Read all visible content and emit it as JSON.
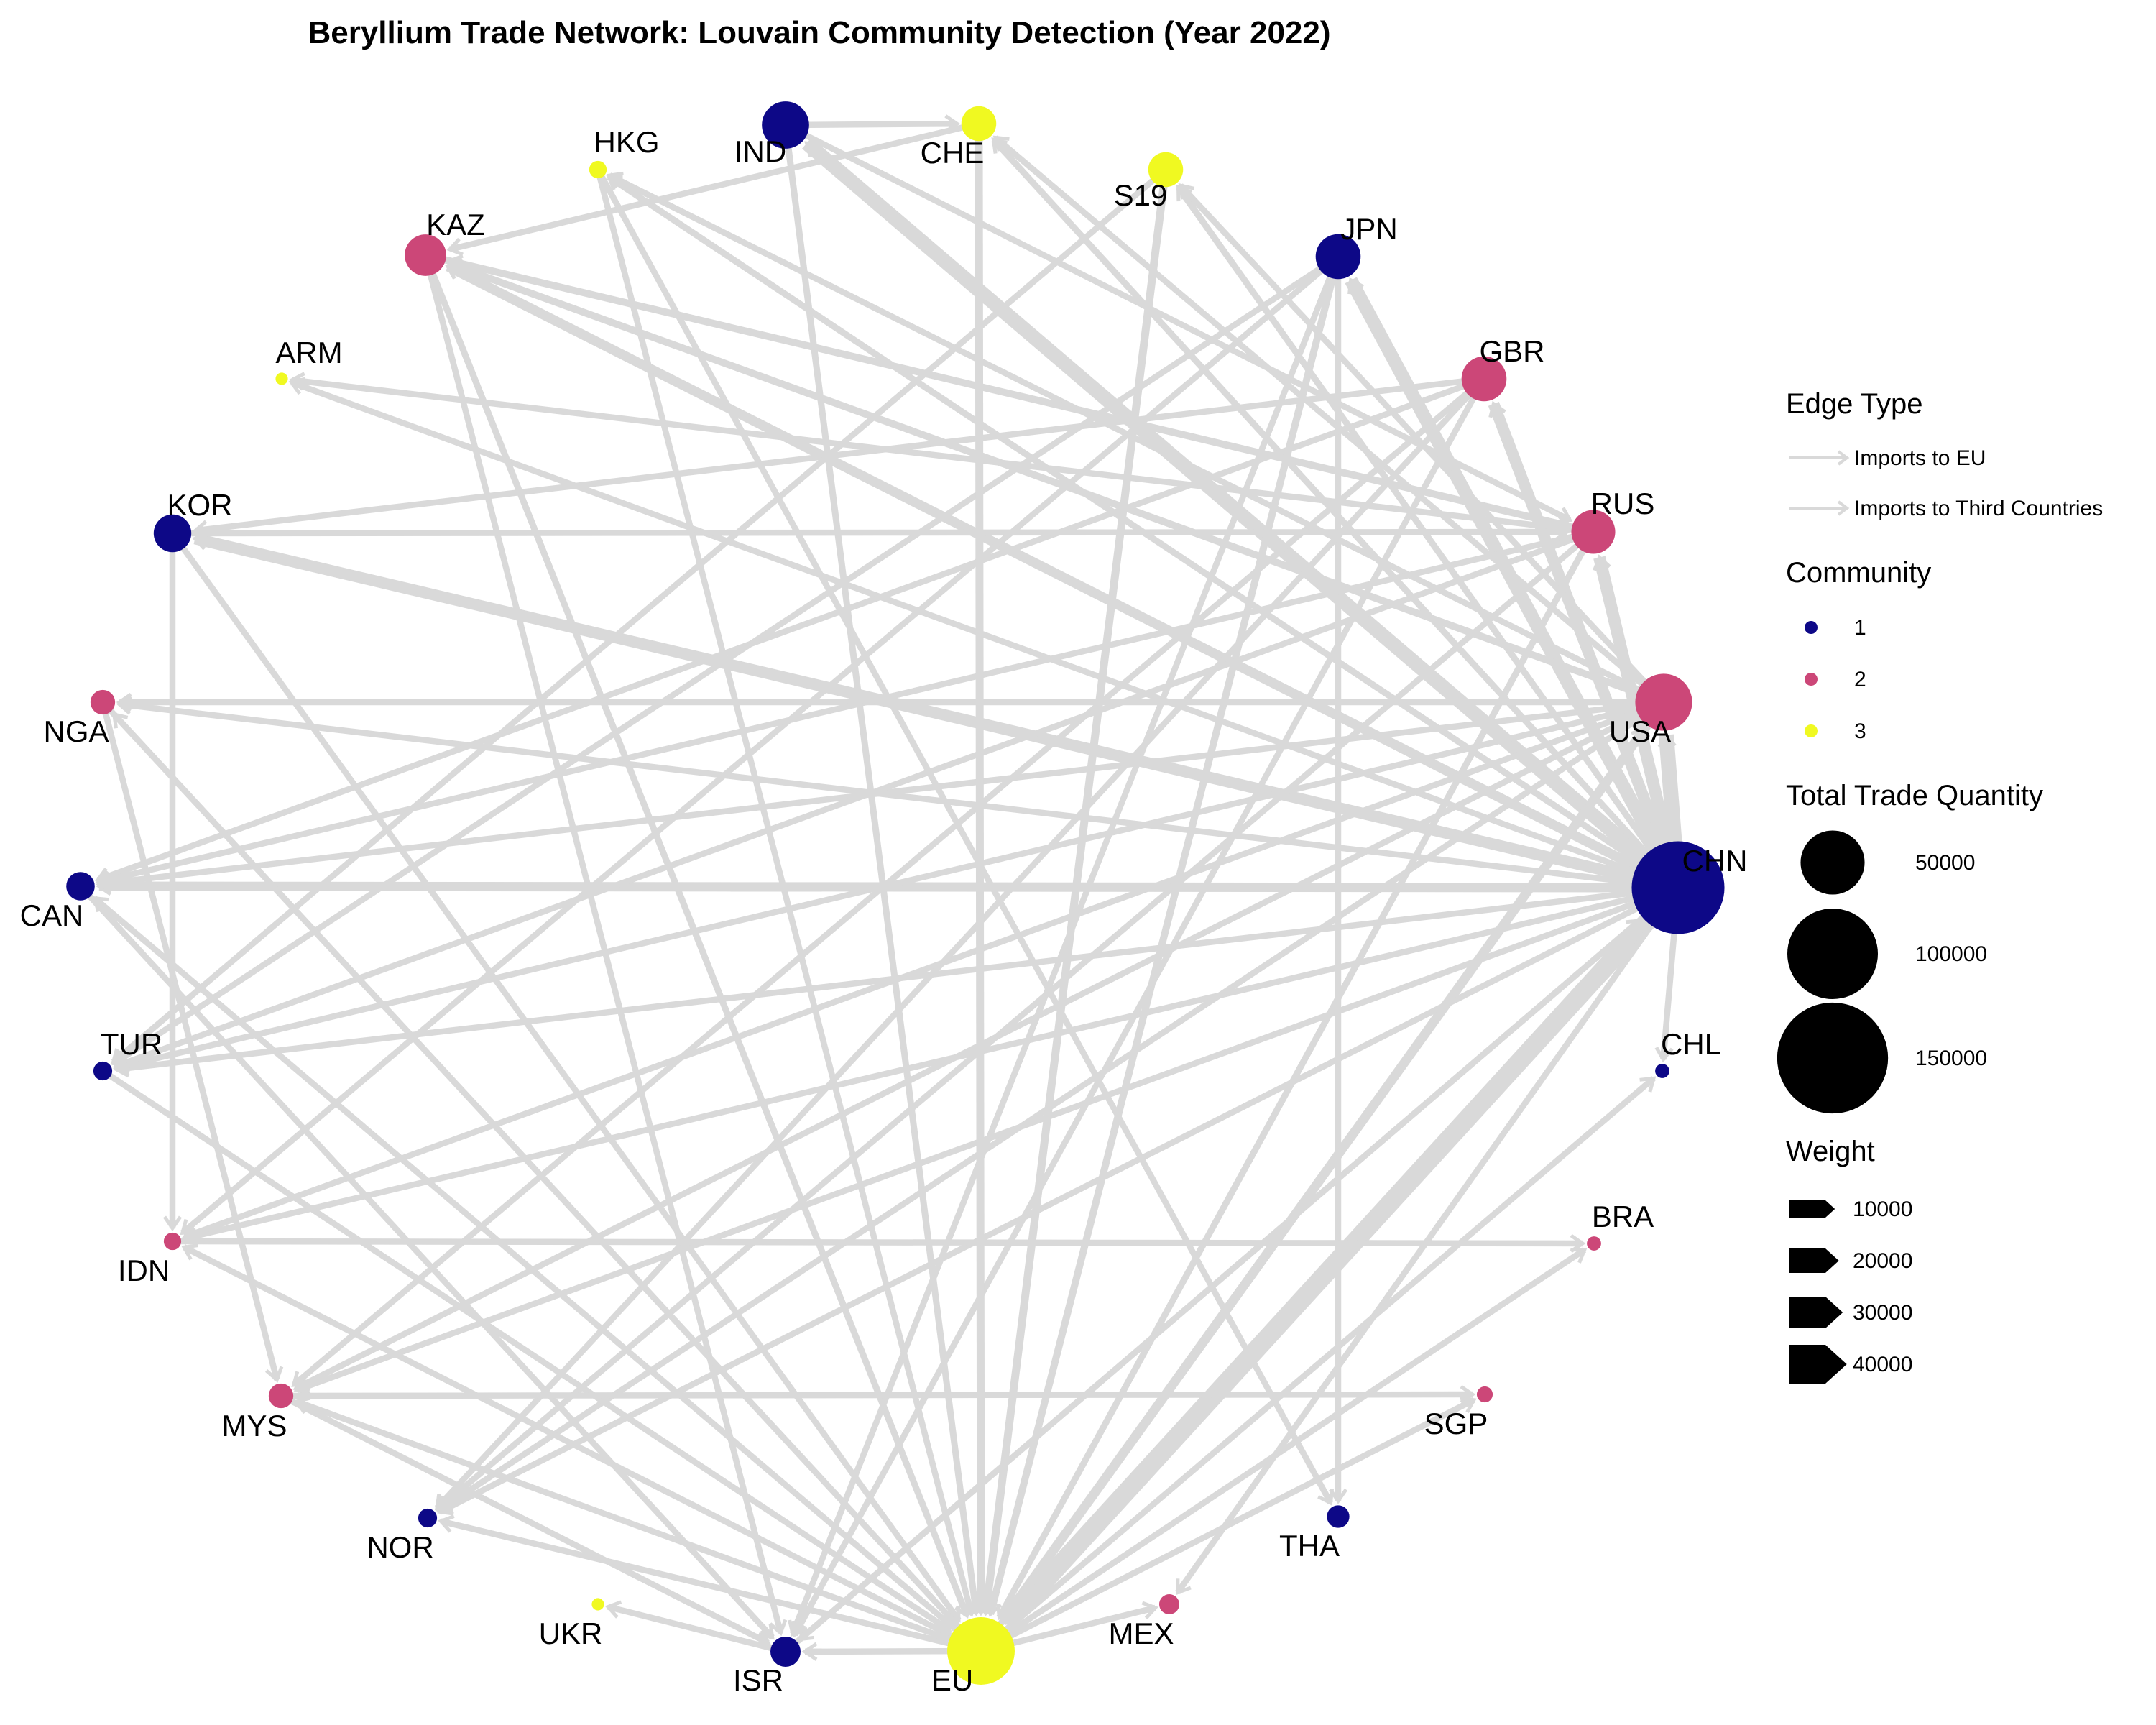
{
  "title": "Beryllium Trade Network: Louvain Community Detection (Year 2022)",
  "community_colors": {
    "1": "#0d0887",
    "2": "#cc4778",
    "3": "#f0f921"
  },
  "edge_color": "#d9d9d9",
  "nodes": [
    {
      "id": "IND",
      "community": "1",
      "size": 22000
    },
    {
      "id": "CHE",
      "community": "3",
      "size": 12000
    },
    {
      "id": "HKG",
      "community": "3",
      "size": 3000
    },
    {
      "id": "S19",
      "community": "3",
      "size": 12000
    },
    {
      "id": "KAZ",
      "community": "2",
      "size": 17000
    },
    {
      "id": "JPN",
      "community": "1",
      "size": 20000
    },
    {
      "id": "ARM",
      "community": "3",
      "size": 1500
    },
    {
      "id": "GBR",
      "community": "2",
      "size": 20000
    },
    {
      "id": "KOR",
      "community": "1",
      "size": 14000
    },
    {
      "id": "RUS",
      "community": "2",
      "size": 19000
    },
    {
      "id": "NGA",
      "community": "2",
      "size": 6000
    },
    {
      "id": "USA",
      "community": "2",
      "size": 32000
    },
    {
      "id": "CAN",
      "community": "1",
      "size": 8000
    },
    {
      "id": "CHN",
      "community": "1",
      "size": 85000
    },
    {
      "id": "TUR",
      "community": "1",
      "size": 3500
    },
    {
      "id": "CHL",
      "community": "1",
      "size": 2000
    },
    {
      "id": "IDN",
      "community": "2",
      "size": 3000
    },
    {
      "id": "BRA",
      "community": "2",
      "size": 2000
    },
    {
      "id": "MYS",
      "community": "2",
      "size": 6000
    },
    {
      "id": "SGP",
      "community": "2",
      "size": 2500
    },
    {
      "id": "NOR",
      "community": "1",
      "size": 3500
    },
    {
      "id": "THA",
      "community": "1",
      "size": 5000
    },
    {
      "id": "UKR",
      "community": "3",
      "size": 1500
    },
    {
      "id": "MEX",
      "community": "2",
      "size": 4000
    },
    {
      "id": "ISR",
      "community": "1",
      "size": 9000
    },
    {
      "id": "EU",
      "community": "3",
      "size": 45000
    }
  ],
  "edges": [
    {
      "from": "CHN",
      "to": "USA",
      "weight": 30000,
      "type": "Imports to Third Countries"
    },
    {
      "from": "CHN",
      "to": "RUS",
      "weight": 22000,
      "type": "Imports to Third Countries"
    },
    {
      "from": "CHN",
      "to": "GBR",
      "weight": 20000,
      "type": "Imports to Third Countries"
    },
    {
      "from": "CHN",
      "to": "JPN",
      "weight": 25000,
      "type": "Imports to Third Countries"
    },
    {
      "from": "CHN",
      "to": "IND",
      "weight": 28000,
      "type": "Imports to Third Countries"
    },
    {
      "from": "CHN",
      "to": "KOR",
      "weight": 20000,
      "type": "Imports to Third Countries"
    },
    {
      "from": "CHN",
      "to": "CAN",
      "weight": 14000,
      "type": "Imports to Third Countries"
    },
    {
      "from": "CHN",
      "to": "KAZ",
      "weight": 15000,
      "type": "Imports to Third Countries"
    },
    {
      "from": "CHN",
      "to": "EU",
      "weight": 40000,
      "type": "Imports to EU"
    },
    {
      "from": "CHN",
      "to": "S19",
      "weight": 6000,
      "type": "Imports to Third Countries"
    },
    {
      "from": "CHN",
      "to": "CHE",
      "weight": 6000,
      "type": "Imports to Third Countries"
    },
    {
      "from": "CHN",
      "to": "HKG",
      "weight": 6000,
      "type": "Imports to Third Countries"
    },
    {
      "from": "CHN",
      "to": "ARM",
      "weight": 5000,
      "type": "Imports to Third Countries"
    },
    {
      "from": "CHN",
      "to": "NGA",
      "weight": 5000,
      "type": "Imports to Third Countries"
    },
    {
      "from": "CHN",
      "to": "TUR",
      "weight": 5000,
      "type": "Imports to Third Countries"
    },
    {
      "from": "CHN",
      "to": "IDN",
      "weight": 5000,
      "type": "Imports to Third Countries"
    },
    {
      "from": "CHN",
      "to": "MYS",
      "weight": 5000,
      "type": "Imports to Third Countries"
    },
    {
      "from": "CHN",
      "to": "NOR",
      "weight": 5000,
      "type": "Imports to Third Countries"
    },
    {
      "from": "CHN",
      "to": "ISR",
      "weight": 5000,
      "type": "Imports to Third Countries"
    },
    {
      "from": "CHN",
      "to": "MEX",
      "weight": 5000,
      "type": "Imports to Third Countries"
    },
    {
      "from": "CHN",
      "to": "CHL",
      "weight": 5000,
      "type": "Imports to Third Countries"
    },
    {
      "from": "USA",
      "to": "EU",
      "weight": 14000,
      "type": "Imports to EU"
    },
    {
      "from": "USA",
      "to": "KAZ",
      "weight": 8000,
      "type": "Imports to Third Countries"
    },
    {
      "from": "USA",
      "to": "CAN",
      "weight": 5000,
      "type": "Imports to Third Countries"
    },
    {
      "from": "USA",
      "to": "NGA",
      "weight": 5000,
      "type": "Imports to Third Countries"
    },
    {
      "from": "USA",
      "to": "TUR",
      "weight": 5000,
      "type": "Imports to Third Countries"
    },
    {
      "from": "USA",
      "to": "HKG",
      "weight": 5000,
      "type": "Imports to Third Countries"
    },
    {
      "from": "USA",
      "to": "NOR",
      "weight": 5000,
      "type": "Imports to Third Countries"
    },
    {
      "from": "USA",
      "to": "S19",
      "weight": 5000,
      "type": "Imports to Third Countries"
    },
    {
      "from": "USA",
      "to": "CHE",
      "weight": 5000,
      "type": "Imports to Third Countries"
    },
    {
      "from": "USA",
      "to": "IDN",
      "weight": 5000,
      "type": "Imports to Third Countries"
    },
    {
      "from": "USA",
      "to": "MYS",
      "weight": 5000,
      "type": "Imports to Third Countries"
    },
    {
      "from": "JPN",
      "to": "EU",
      "weight": 8000,
      "type": "Imports to EU"
    },
    {
      "from": "JPN",
      "to": "THA",
      "weight": 5000,
      "type": "Imports to Third Countries"
    },
    {
      "from": "JPN",
      "to": "TUR",
      "weight": 5000,
      "type": "Imports to Third Countries"
    },
    {
      "from": "JPN",
      "to": "IDN",
      "weight": 5000,
      "type": "Imports to Third Countries"
    },
    {
      "from": "JPN",
      "to": "ISR",
      "weight": 5000,
      "type": "Imports to Third Countries"
    },
    {
      "from": "GBR",
      "to": "KOR",
      "weight": 5000,
      "type": "Imports to Third Countries"
    },
    {
      "from": "GBR",
      "to": "CAN",
      "weight": 5000,
      "type": "Imports to Third Countries"
    },
    {
      "from": "GBR",
      "to": "MYS",
      "weight": 5000,
      "type": "Imports to Third Countries"
    },
    {
      "from": "GBR",
      "to": "NOR",
      "weight": 5000,
      "type": "Imports to Third Countries"
    },
    {
      "from": "GBR",
      "to": "ISR",
      "weight": 5000,
      "type": "Imports to Third Countries"
    },
    {
      "from": "RUS",
      "to": "KAZ",
      "weight": 6000,
      "type": "Imports to Third Countries"
    },
    {
      "from": "RUS",
      "to": "CAN",
      "weight": 5000,
      "type": "Imports to Third Countries"
    },
    {
      "from": "RUS",
      "to": "ARM",
      "weight": 5000,
      "type": "Imports to Third Countries"
    },
    {
      "from": "RUS",
      "to": "TUR",
      "weight": 5000,
      "type": "Imports to Third Countries"
    },
    {
      "from": "RUS",
      "to": "EU",
      "weight": 6000,
      "type": "Imports to EU"
    },
    {
      "from": "RUS",
      "to": "NOR",
      "weight": 5000,
      "type": "Imports to Third Countries"
    },
    {
      "from": "IND",
      "to": "CHE",
      "weight": 5000,
      "type": "Imports to Third Countries"
    },
    {
      "from": "IND",
      "to": "EU",
      "weight": 6000,
      "type": "Imports to EU"
    },
    {
      "from": "IND",
      "to": "RUS",
      "weight": 5000,
      "type": "Imports to Third Countries"
    },
    {
      "from": "KAZ",
      "to": "EU",
      "weight": 6000,
      "type": "Imports to EU"
    },
    {
      "from": "KAZ",
      "to": "ISR",
      "weight": 5000,
      "type": "Imports to Third Countries"
    },
    {
      "from": "KAZ",
      "to": "RUS",
      "weight": 8000,
      "type": "Imports to Third Countries"
    },
    {
      "from": "KOR",
      "to": "IDN",
      "weight": 5000,
      "type": "Imports to Third Countries"
    },
    {
      "from": "KOR",
      "to": "RUS",
      "weight": 5000,
      "type": "Imports to Third Countries"
    },
    {
      "from": "KOR",
      "to": "EU",
      "weight": 5000,
      "type": "Imports to EU"
    },
    {
      "from": "S19",
      "to": "EU",
      "weight": 10000,
      "type": "Imports to EU"
    },
    {
      "from": "S19",
      "to": "TUR",
      "weight": 5000,
      "type": "Imports to Third Countries"
    },
    {
      "from": "CHE",
      "to": "EU",
      "weight": 10000,
      "type": "Imports to EU"
    },
    {
      "from": "CHE",
      "to": "KAZ",
      "weight": 5000,
      "type": "Imports to Third Countries"
    },
    {
      "from": "HKG",
      "to": "EU",
      "weight": 5000,
      "type": "Imports to EU"
    },
    {
      "from": "HKG",
      "to": "THA",
      "weight": 5000,
      "type": "Imports to Third Countries"
    },
    {
      "from": "NGA",
      "to": "EU",
      "weight": 5000,
      "type": "Imports to EU"
    },
    {
      "from": "NGA",
      "to": "MYS",
      "weight": 5000,
      "type": "Imports to Third Countries"
    },
    {
      "from": "CAN",
      "to": "ISR",
      "weight": 5000,
      "type": "Imports to Third Countries"
    },
    {
      "from": "TUR",
      "to": "EU",
      "weight": 5000,
      "type": "Imports to EU"
    },
    {
      "from": "IDN",
      "to": "BRA",
      "weight": 5000,
      "type": "Imports to Third Countries"
    },
    {
      "from": "MYS",
      "to": "SGP",
      "weight": 5000,
      "type": "Imports to Third Countries"
    },
    {
      "from": "MYS",
      "to": "ISR",
      "weight": 5000,
      "type": "Imports to Third Countries"
    },
    {
      "from": "EU",
      "to": "USA",
      "weight": 6000,
      "type": "Imports to Third Countries"
    },
    {
      "from": "EU",
      "to": "CHL",
      "weight": 5000,
      "type": "Imports to Third Countries"
    },
    {
      "from": "EU",
      "to": "BRA",
      "weight": 5000,
      "type": "Imports to Third Countries"
    },
    {
      "from": "EU",
      "to": "SGP",
      "weight": 5000,
      "type": "Imports to Third Countries"
    },
    {
      "from": "EU",
      "to": "NOR",
      "weight": 5000,
      "type": "Imports to Third Countries"
    },
    {
      "from": "EU",
      "to": "MEX",
      "weight": 5000,
      "type": "Imports to Third Countries"
    },
    {
      "from": "EU",
      "to": "ISR",
      "weight": 5000,
      "type": "Imports to Third Countries"
    },
    {
      "from": "EU",
      "to": "IDN",
      "weight": 5000,
      "type": "Imports to Third Countries"
    },
    {
      "from": "EU",
      "to": "MYS",
      "weight": 5000,
      "type": "Imports to Third Countries"
    },
    {
      "from": "EU",
      "to": "CAN",
      "weight": 5000,
      "type": "Imports to Third Countries"
    },
    {
      "from": "EU",
      "to": "NGA",
      "weight": 5000,
      "type": "Imports to Third Countries"
    },
    {
      "from": "ISR",
      "to": "UKR",
      "weight": 5000,
      "type": "Imports to Third Countries"
    },
    {
      "from": "ISR",
      "to": "CHN",
      "weight": 5000,
      "type": "Imports to Third Countries"
    }
  ],
  "legend": {
    "edge_type": {
      "title": "Edge Type",
      "items": [
        "Imports to EU",
        "Imports to Third Countries"
      ]
    },
    "community": {
      "title": "Community",
      "items": [
        "1",
        "2",
        "3"
      ]
    },
    "size": {
      "title": "Total Trade Quantity",
      "items": [
        {
          "label": "50000",
          "value": 50000
        },
        {
          "label": "100000",
          "value": 100000
        },
        {
          "label": "150000",
          "value": 150000
        }
      ]
    },
    "weight": {
      "title": "Weight",
      "items": [
        {
          "label": "10000",
          "value": 10000
        },
        {
          "label": "20000",
          "value": 20000
        },
        {
          "label": "30000",
          "value": 30000
        },
        {
          "label": "40000",
          "value": 40000
        }
      ]
    }
  }
}
